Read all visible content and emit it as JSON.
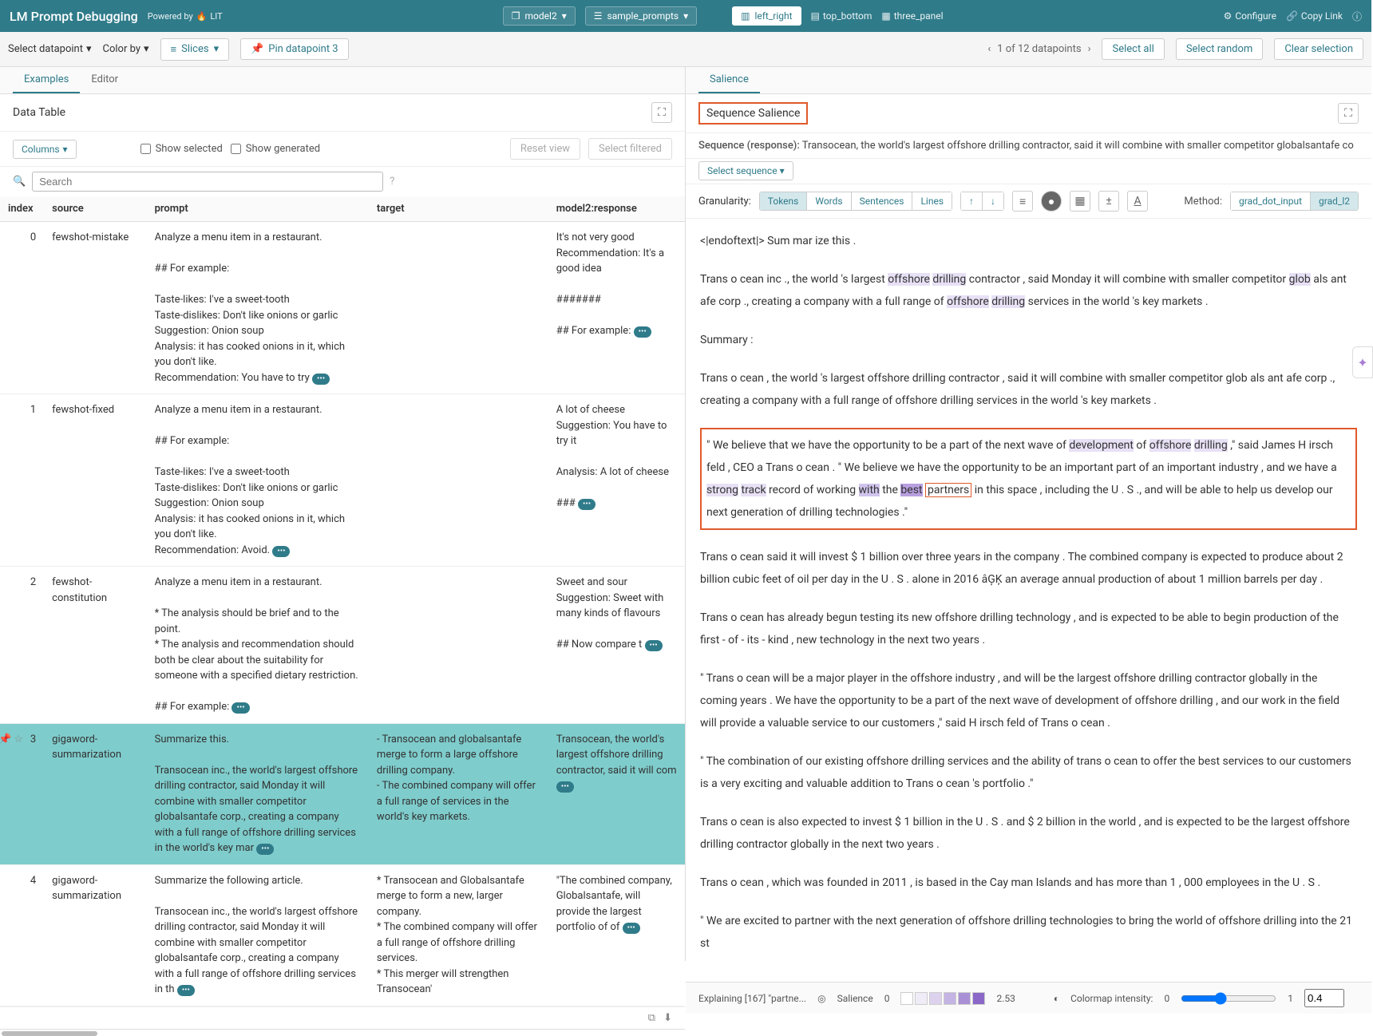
{
  "header": {
    "title": "LM Prompt Debugging",
    "powered_by": "Powered by",
    "lit": "LIT",
    "model_dropdown": "model2",
    "dataset_dropdown": "sample_prompts",
    "layouts": [
      {
        "label": "left_right",
        "active": true
      },
      {
        "label": "top_bottom",
        "active": false
      },
      {
        "label": "three_panel",
        "active": false
      }
    ],
    "configure": "Configure",
    "copy_link": "Copy Link"
  },
  "toolbar": {
    "select_datapoint": "Select datapoint",
    "color_by": "Color by",
    "slices": "Slices",
    "pin_datapoint": "Pin datapoint 3",
    "nav_text": "1 of 12 datapoints",
    "select_all": "Select all",
    "select_random": "Select random",
    "clear_selection": "Clear selection"
  },
  "left": {
    "tabs": [
      {
        "label": "Examples",
        "active": true
      },
      {
        "label": "Editor",
        "active": false
      }
    ],
    "panel_title": "Data Table",
    "columns_btn": "Columns",
    "show_selected": "Show selected",
    "show_generated": "Show generated",
    "reset_view": "Reset view",
    "select_filtered": "Select filtered",
    "search_placeholder": "Search",
    "columns": [
      "index",
      "source",
      "prompt",
      "target",
      "model2:response"
    ],
    "rows": [
      {
        "index": "0",
        "source": "fewshot-mistake",
        "prompt": "Analyze a menu item in a restaurant.\n\n## For example:\n\nTaste-likes: I've a sweet-tooth\nTaste-dislikes: Don't like onions or garlic\nSuggestion: Onion soup\nAnalysis: it has cooked onions in it, which you don't like.\nRecommendation: You have to try",
        "target": "",
        "response": "It's not very good\nRecommendation: It's a good idea\n\n#######\n\n## For example:"
      },
      {
        "index": "1",
        "source": "fewshot-fixed",
        "prompt": "Analyze a menu item in a restaurant.\n\n## For example:\n\nTaste-likes: I've a sweet-tooth\nTaste-dislikes: Don't like onions or garlic\nSuggestion: Onion soup\nAnalysis: it has cooked onions in it, which you don't like.\nRecommendation: Avoid.",
        "target": "",
        "response": "A lot of cheese\nSuggestion: You have to try it\n\nAnalysis: A lot of cheese\n\n###"
      },
      {
        "index": "2",
        "source": "fewshot-constitution",
        "prompt": "Analyze a menu item in a restaurant.\n\n* The analysis should be brief and to the point.\n* The analysis and recommendation should both be clear about the suitability for someone with a specified dietary restriction.\n\n## For example:",
        "target": "",
        "response": "Sweet and sour\nSuggestion: Sweet with many kinds of flavours\n\n## Now compare t"
      },
      {
        "index": "3",
        "source": "gigaword-summarization",
        "prompt": "Summarize this.\n\nTransocean inc., the world's largest offshore drilling contractor, said Monday it will combine with smaller competitor globalsantafe corp., creating a company with a full range of offshore drilling services in the world's key mar",
        "target": "- Transocean and globalsantafe merge to form a large offshore drilling company.\n- The combined company will offer a full range of services in the world's key markets.",
        "response": "Transocean, the world's largest offshore drilling contractor, said it will com",
        "selected": true
      },
      {
        "index": "4",
        "source": "gigaword-summarization",
        "prompt": "Summarize the following article.\n\nTransocean inc., the world's largest offshore drilling contractor, said Monday it will combine with smaller competitor globalsantafe corp., creating a company with a full range of offshore drilling services in th",
        "target": "* Transocean and Globalsantafe merge to form a new, larger company.\n* The combined company will offer a full range of offshore drilling services.\n* This merger will strengthen Transocean'",
        "response": "\"The combined company, Globalsantafe, will provide the largest portfolio of of"
      }
    ]
  },
  "right": {
    "tabs": [
      {
        "label": "Salience",
        "active": true
      }
    ],
    "panel_title": "Sequence Salience",
    "sequence_label": "Sequence (response):",
    "sequence_text": "Transocean, the world's largest offshore drilling contractor, said it will combine with smaller competitor globalsantafe co",
    "select_sequence": "Select sequence",
    "granularity_label": "Granularity:",
    "granularity_opts": [
      {
        "label": "Tokens",
        "active": true
      },
      {
        "label": "Words",
        "active": false
      },
      {
        "label": "Sentences",
        "active": false
      },
      {
        "label": "Lines",
        "active": false
      }
    ],
    "method_label": "Method:",
    "method_opts": [
      {
        "label": "grad_dot_input",
        "active": false
      },
      {
        "label": "grad_l2",
        "active": true
      }
    ],
    "body": {
      "p1": "<|endoftext|> Sum mar ize this .",
      "p2_pre": "Trans o cean inc ., the world 's largest ",
      "p2_off1": "offshore",
      "p2_sp1": " ",
      "p2_dr1": "drilling",
      "p2_mid1": " contractor , said Monday it will combine with smaller competitor ",
      "p2_glob": "glob",
      "p2_mid2": " als ant afe corp ., creating a company with a full range of ",
      "p2_off2": "offshore",
      "p2_sp2": " ",
      "p2_dr2": "drilling",
      "p2_end": " services in the world 's key markets .",
      "p3": "Summary :",
      "p4": "Trans o cean , the world 's largest offshore drilling contractor , said it will combine with smaller competitor glob als ant afe corp ., creating a company with a full range of offshore drilling services in the world 's key markets .",
      "p5_a": "\" We believe that we have the opportunity to be a part of the next wave of ",
      "p5_dev": "development",
      "p5_b": " of ",
      "p5_off": "offshore",
      "p5_c": " ",
      "p5_dr": "drilling",
      "p5_d": " ,\" said James H irsch feld , CEO a Trans o cean . \" We believe we have the opportunity to be an important part of an important industry , and we have a ",
      "p5_str": "strong",
      "p5_e": " ",
      "p5_trk": "track",
      "p5_f": " record of working ",
      "p5_with": "with",
      "p5_g": " the ",
      "p5_best": "best",
      "p5_h": " ",
      "p5_part": "partners",
      "p5_i": " in this space , including the U . S ., and will be able to help us develop our next generation of drilling technologies .\"",
      "p6": "Trans o cean said it will invest $ 1 billion over three years in the company . The combined company is expected to produce about 2 billion cubic feet of oil per day in the U . S . alone in 2016 âĢĶ an average annual production of about 1 million barrels per day .",
      "p7": "Trans o cean has already begun testing its new offshore drilling technology , and is expected to be able to begin production of the first - of - its - kind , new technology in the next two years .",
      "p8": "\" Trans o cean will be a major player in the offshore industry , and will be the largest offshore drilling contractor globally in the coming years . We have the opportunity to be a part of the next wave of development of offshore drilling , and our work in the field will provide a valuable service to our customers ,\" said H irsch feld of Trans o cean .",
      "p9": "\" The combination of our existing offshore drilling services and the ability of trans o cean to offer the best services to our customers is a very exciting and valuable addition to Trans o cean 's portfolio .\"",
      "p10": "Trans o cean is also expected to invest $ 1 billion in the U . S . and $ 2 billion in the world , and is expected to be the largest offshore drilling contractor globally in the next two years .",
      "p11": "Trans o cean , which was founded in 2011 , is based in the Cay man Islands and has more than 1 , 000 employees in the U . S .",
      "p12": "\" We are excited to partner with the next generation of offshore drilling technologies to bring the world of offshore drilling into the 21 st"
    },
    "footer": {
      "explaining": "Explaining [167] \"partne...",
      "salience_label": "Salience",
      "salience_min": "0",
      "salience_max": "2.53",
      "colormap_label": "Colormap intensity:",
      "cm_min": "0",
      "cm_max": "1",
      "cm_val": "0.4"
    },
    "swatch_colors": [
      "#ffffff",
      "#f0ecf7",
      "#dcd2ee",
      "#c4b4e3",
      "#a990d6",
      "#8b68c8"
    ]
  },
  "colors": {
    "teal": "#2f7b8a",
    "orange_box": "#e05a2b",
    "selected_row": "#7fcccc"
  }
}
